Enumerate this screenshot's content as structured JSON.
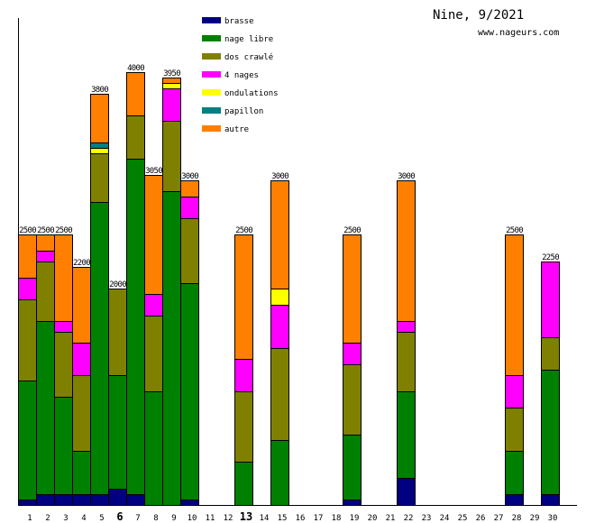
{
  "chart_data": {
    "type": "bar",
    "stacked": true,
    "title": "Nine, 9/2021",
    "subtitle": "www.nageurs.com",
    "xlabel": "",
    "ylabel": "",
    "ylim": [
      0,
      4500
    ],
    "grid": false,
    "legend_position": "top-left",
    "highlighted_categories": [
      "6",
      "13"
    ],
    "categories": [
      "1",
      "2",
      "3",
      "4",
      "5",
      "6",
      "7",
      "8",
      "9",
      "10",
      "11",
      "12",
      "13",
      "14",
      "15",
      "16",
      "17",
      "18",
      "19",
      "20",
      "21",
      "22",
      "23",
      "24",
      "25",
      "26",
      "27",
      "28",
      "29",
      "30"
    ],
    "totals": [
      2500,
      2500,
      2500,
      2200,
      3800,
      2000,
      4000,
      3050,
      3950,
      3000,
      null,
      null,
      2500,
      null,
      3000,
      null,
      null,
      null,
      2500,
      null,
      null,
      3000,
      null,
      null,
      null,
      null,
      null,
      2500,
      null,
      2250
    ],
    "series": [
      {
        "name": "brasse",
        "color": "#000080",
        "values": [
          50,
          100,
          100,
          100,
          100,
          150,
          100,
          0,
          0,
          50,
          0,
          0,
          0,
          0,
          0,
          0,
          0,
          0,
          50,
          0,
          0,
          250,
          0,
          0,
          0,
          0,
          0,
          100,
          0,
          100
        ]
      },
      {
        "name": "nage libre",
        "color": "#008000",
        "values": [
          1100,
          1600,
          900,
          400,
          2700,
          1050,
          3100,
          1050,
          2900,
          2000,
          0,
          0,
          400,
          0,
          600,
          0,
          0,
          0,
          600,
          0,
          0,
          800,
          0,
          0,
          0,
          0,
          0,
          400,
          0,
          1150
        ]
      },
      {
        "name": "dos crawlé",
        "color": "#808000",
        "values": [
          750,
          550,
          600,
          700,
          450,
          800,
          400,
          700,
          650,
          600,
          0,
          0,
          650,
          0,
          850,
          0,
          0,
          0,
          650,
          0,
          0,
          550,
          0,
          0,
          0,
          0,
          0,
          400,
          0,
          300
        ]
      },
      {
        "name": "4 nages",
        "color": "#ff00ff",
        "values": [
          200,
          100,
          100,
          300,
          0,
          0,
          0,
          200,
          300,
          200,
          0,
          0,
          300,
          0,
          400,
          0,
          0,
          0,
          200,
          0,
          0,
          100,
          0,
          0,
          0,
          0,
          0,
          300,
          0,
          700
        ]
      },
      {
        "name": "ondulations",
        "color": "#ffff00",
        "values": [
          0,
          0,
          0,
          0,
          50,
          0,
          0,
          0,
          50,
          0,
          0,
          0,
          0,
          0,
          150,
          0,
          0,
          0,
          0,
          0,
          0,
          0,
          0,
          0,
          0,
          0,
          0,
          0,
          0,
          0
        ]
      },
      {
        "name": "papillon",
        "color": "#008080",
        "values": [
          0,
          0,
          0,
          0,
          50,
          0,
          0,
          0,
          0,
          0,
          0,
          0,
          0,
          0,
          0,
          0,
          0,
          0,
          0,
          0,
          0,
          0,
          0,
          0,
          0,
          0,
          0,
          0,
          0,
          0
        ]
      },
      {
        "name": "autre",
        "color": "#ff8000",
        "values": [
          400,
          150,
          800,
          700,
          450,
          0,
          400,
          1100,
          50,
          150,
          0,
          0,
          1150,
          0,
          1000,
          0,
          0,
          0,
          1000,
          0,
          0,
          1300,
          0,
          0,
          0,
          0,
          0,
          1300,
          0,
          0
        ]
      }
    ]
  }
}
